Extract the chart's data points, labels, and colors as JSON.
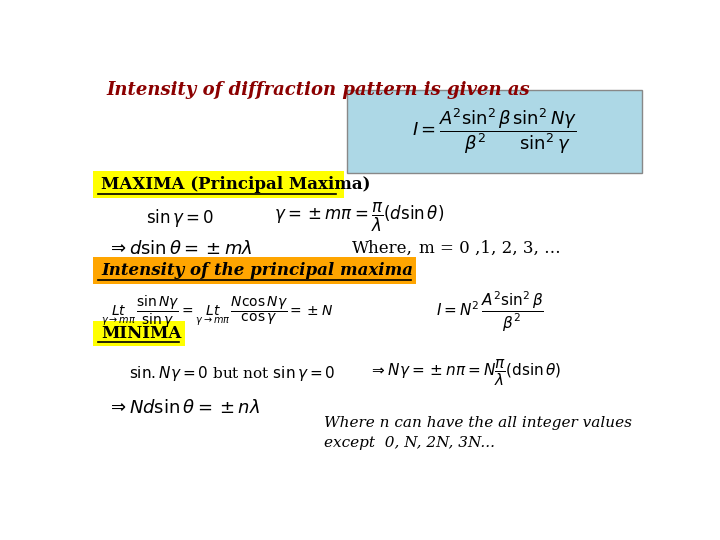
{
  "bg_color": "#ffffff",
  "title_text": "Intensity of diffraction pattern is given as",
  "title_color": "#8B0000",
  "formula_box_color": "#add8e6",
  "maxima_label": "MAXIMA (Principal Maxima)",
  "maxima_bg": "#ffff00",
  "m_values": "m = 0 ,1, 2, 3, …",
  "intensity_label": "Intensity of the principal maxima",
  "intensity_bg": "#FFA500",
  "minima_label": "MINIMA",
  "minima_bg": "#ffff00",
  "footnote_line1": "Where n can have the all integer values",
  "footnote_line2": "except  0, N, 2N, 3N..."
}
